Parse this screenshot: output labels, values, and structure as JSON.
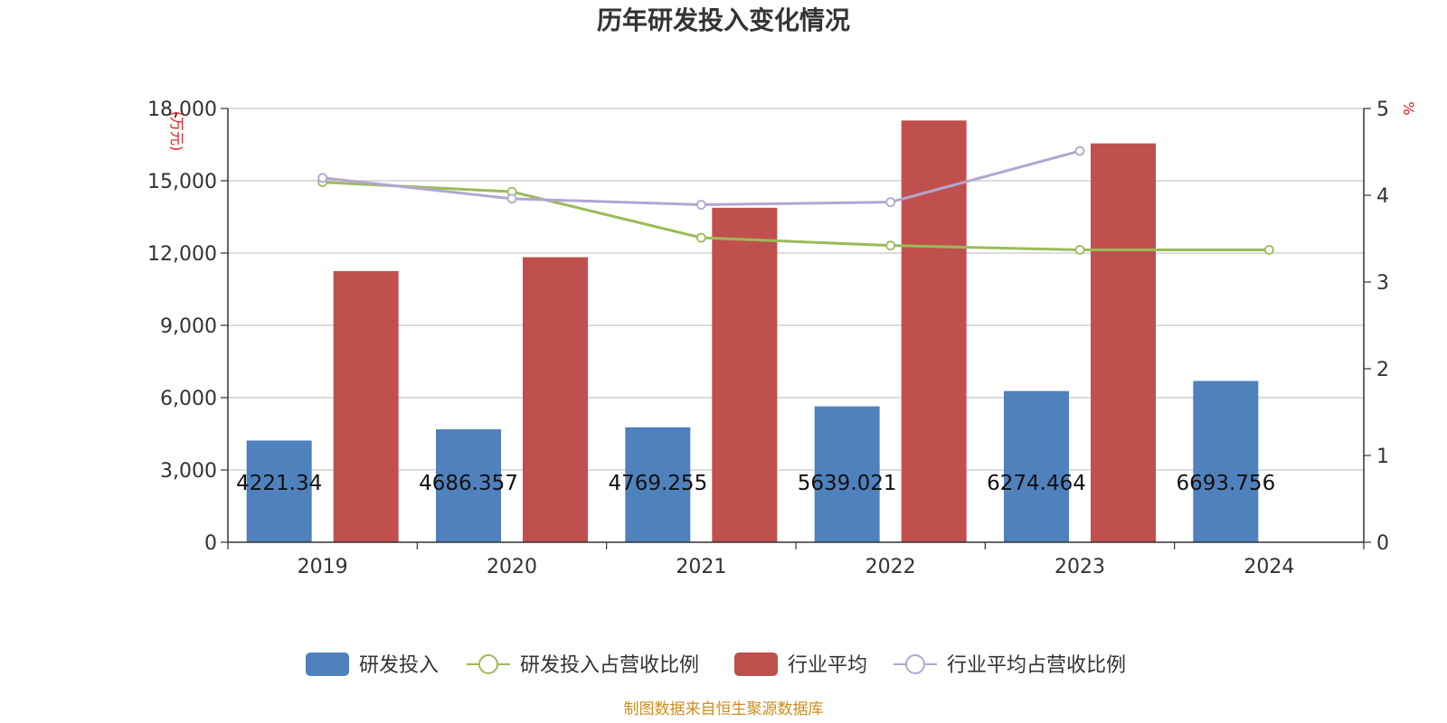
{
  "chart_data": {
    "type": "bar",
    "title": "历年研发投入变化情况",
    "categories": [
      "2019",
      "2020",
      "2021",
      "2022",
      "2023",
      "2024"
    ],
    "y_left": {
      "unit_label": "(万元)",
      "min": 0,
      "max": 18000,
      "ticks": [
        "0",
        "3,000",
        "6,000",
        "9,000",
        "12,000",
        "15,000",
        "18,000"
      ]
    },
    "y_right": {
      "unit_label": "%",
      "min": 0,
      "max": 5,
      "ticks": [
        "0",
        "1",
        "2",
        "3",
        "4",
        "5"
      ]
    },
    "series": [
      {
        "name": "研发投入",
        "type": "bar",
        "axis": "left",
        "color": "#4f81bd",
        "values": [
          4221.34,
          4686.357,
          4769.255,
          5639.021,
          6274.464,
          6693.756
        ],
        "labels": [
          "4221.34",
          "4686.357",
          "4769.255",
          "5639.021",
          "6274.464",
          "6693.756"
        ]
      },
      {
        "name": "研发投入占营收比例",
        "type": "line",
        "axis": "right",
        "color": "#9bbb59",
        "values": [
          4.15,
          4.04,
          3.51,
          3.42,
          3.37,
          3.37
        ]
      },
      {
        "name": "行业平均",
        "type": "bar",
        "axis": "left",
        "color": "#c0504d",
        "values": [
          11250,
          11830,
          13880,
          17500,
          16550,
          null
        ]
      },
      {
        "name": "行业平均占营收比例",
        "type": "line",
        "axis": "right",
        "color": "#b3a6d1",
        "values": [
          4.2,
          3.96,
          3.89,
          3.92,
          4.51,
          null
        ]
      }
    ],
    "legend_position": "bottom",
    "grid": true
  },
  "footer": {
    "source": "制图数据来自恒生聚源数据库"
  }
}
